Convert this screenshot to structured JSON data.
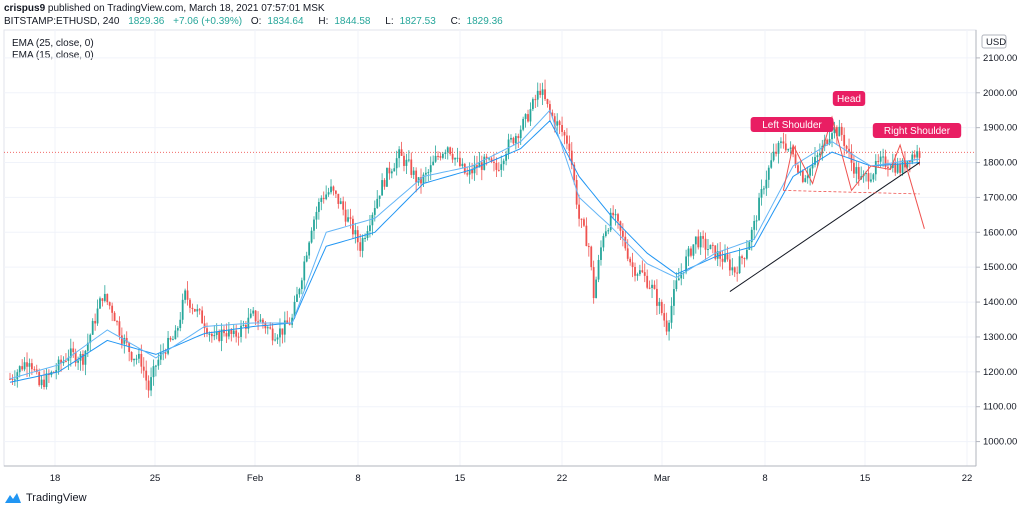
{
  "header": {
    "author": "crispus9",
    "published_text": "published on TradingView.com, March 18, 2021 07:57:01 MSK",
    "symbol": "BITSTAMP:ETHUSD, 240",
    "last": "1829.36",
    "change": "+7.06 (+0.39%)",
    "o_label": "O:",
    "o_value": "1834.64",
    "h_label": "H:",
    "h_value": "1844.58",
    "l_label": "L:",
    "l_value": "1827.53",
    "c_label": "C:",
    "c_value": "1829.36"
  },
  "legend": {
    "ema25": "EMA (25, close, 0)",
    "ema15": "EMA (15, close, 0)"
  },
  "currency": "USD",
  "pattern_labels": {
    "left_shoulder": "Left Shoulder",
    "head": "Head",
    "right_shoulder": "Right Shoulder"
  },
  "footer": {
    "brand": "TradingView"
  },
  "colors": {
    "up": "#26a69a",
    "down": "#ef5350",
    "ema": "#2196f3",
    "label_bg": "#e91e63",
    "trendline": "#131722",
    "pattern": "#ef5350",
    "last_price_line": "#ef5350"
  },
  "chart_data": {
    "type": "candlestick",
    "title": "BITSTAMP:ETHUSD, 240",
    "ylabel": "USD",
    "ylim": [
      930,
      2180
    ],
    "x_ticks": [
      "18",
      "25",
      "Feb",
      "8",
      "15",
      "22",
      "Mar",
      "8",
      "15",
      "22"
    ],
    "y_ticks": [
      1000,
      1100,
      1200,
      1300,
      1400,
      1500,
      1600,
      1700,
      1800,
      1900,
      2000,
      2100
    ],
    "last_price": 1829.36,
    "price_path": [
      [
        0,
        1180
      ],
      [
        8,
        1240
      ],
      [
        12,
        1160
      ],
      [
        18,
        1200
      ],
      [
        24,
        1250
      ],
      [
        30,
        1240
      ],
      [
        34,
        1330
      ],
      [
        38,
        1420
      ],
      [
        42,
        1380
      ],
      [
        46,
        1300
      ],
      [
        50,
        1250
      ],
      [
        54,
        1230
      ],
      [
        57,
        1150
      ],
      [
        60,
        1220
      ],
      [
        64,
        1270
      ],
      [
        68,
        1300
      ],
      [
        72,
        1420
      ],
      [
        76,
        1380
      ],
      [
        80,
        1340
      ],
      [
        84,
        1290
      ],
      [
        88,
        1320
      ],
      [
        92,
        1300
      ],
      [
        96,
        1330
      ],
      [
        100,
        1360
      ],
      [
        104,
        1340
      ],
      [
        108,
        1310
      ],
      [
        112,
        1320
      ],
      [
        116,
        1350
      ],
      [
        120,
        1480
      ],
      [
        124,
        1620
      ],
      [
        128,
        1700
      ],
      [
        132,
        1720
      ],
      [
        136,
        1680
      ],
      [
        140,
        1620
      ],
      [
        144,
        1560
      ],
      [
        148,
        1640
      ],
      [
        152,
        1720
      ],
      [
        156,
        1780
      ],
      [
        160,
        1820
      ],
      [
        164,
        1790
      ],
      [
        168,
        1740
      ],
      [
        172,
        1770
      ],
      [
        176,
        1820
      ],
      [
        180,
        1850
      ],
      [
        184,
        1800
      ],
      [
        188,
        1760
      ],
      [
        192,
        1790
      ],
      [
        196,
        1800
      ],
      [
        200,
        1780
      ],
      [
        204,
        1840
      ],
      [
        208,
        1880
      ],
      [
        212,
        1920
      ],
      [
        216,
        1980
      ],
      [
        218,
        2010
      ],
      [
        222,
        1940
      ],
      [
        226,
        1900
      ],
      [
        230,
        1850
      ],
      [
        234,
        1640
      ],
      [
        238,
        1560
      ],
      [
        240,
        1420
      ],
      [
        244,
        1600
      ],
      [
        248,
        1650
      ],
      [
        252,
        1580
      ],
      [
        256,
        1500
      ],
      [
        260,
        1480
      ],
      [
        264,
        1440
      ],
      [
        268,
        1370
      ],
      [
        270,
        1330
      ],
      [
        274,
        1450
      ],
      [
        278,
        1520
      ],
      [
        282,
        1580
      ],
      [
        286,
        1560
      ],
      [
        290,
        1540
      ],
      [
        294,
        1520
      ],
      [
        298,
        1490
      ],
      [
        302,
        1540
      ],
      [
        306,
        1620
      ],
      [
        310,
        1740
      ],
      [
        314,
        1820
      ],
      [
        318,
        1860
      ],
      [
        322,
        1820
      ],
      [
        326,
        1760
      ],
      [
        330,
        1790
      ],
      [
        334,
        1840
      ],
      [
        338,
        1900
      ],
      [
        342,
        1880
      ],
      [
        346,
        1800
      ],
      [
        350,
        1750
      ],
      [
        354,
        1770
      ],
      [
        358,
        1800
      ],
      [
        362,
        1800
      ],
      [
        366,
        1780
      ],
      [
        370,
        1820
      ],
      [
        374,
        1829
      ]
    ],
    "ema25_path": [
      [
        0,
        1170
      ],
      [
        20,
        1200
      ],
      [
        40,
        1290
      ],
      [
        60,
        1250
      ],
      [
        80,
        1310
      ],
      [
        100,
        1330
      ],
      [
        116,
        1340
      ],
      [
        130,
        1560
      ],
      [
        150,
        1600
      ],
      [
        170,
        1740
      ],
      [
        190,
        1780
      ],
      [
        210,
        1840
      ],
      [
        222,
        1920
      ],
      [
        234,
        1760
      ],
      [
        248,
        1640
      ],
      [
        262,
        1540
      ],
      [
        274,
        1480
      ],
      [
        290,
        1530
      ],
      [
        306,
        1560
      ],
      [
        322,
        1760
      ],
      [
        338,
        1830
      ],
      [
        354,
        1790
      ],
      [
        374,
        1800
      ]
    ],
    "ema15_path": [
      [
        0,
        1180
      ],
      [
        20,
        1220
      ],
      [
        40,
        1320
      ],
      [
        60,
        1240
      ],
      [
        80,
        1330
      ],
      [
        100,
        1340
      ],
      [
        116,
        1340
      ],
      [
        130,
        1600
      ],
      [
        150,
        1640
      ],
      [
        170,
        1760
      ],
      [
        190,
        1790
      ],
      [
        210,
        1860
      ],
      [
        222,
        1950
      ],
      [
        234,
        1700
      ],
      [
        248,
        1610
      ],
      [
        262,
        1510
      ],
      [
        274,
        1470
      ],
      [
        290,
        1540
      ],
      [
        306,
        1580
      ],
      [
        322,
        1790
      ],
      [
        338,
        1860
      ],
      [
        354,
        1790
      ],
      [
        374,
        1810
      ]
    ],
    "trendline": [
      [
        296,
        1430
      ],
      [
        374,
        1800
      ]
    ],
    "neckline": [
      [
        318,
        1720
      ],
      [
        374,
        1710
      ]
    ],
    "pattern_zigzag": [
      [
        318,
        1720
      ],
      [
        322,
        1850
      ],
      [
        330,
        1740
      ],
      [
        338,
        1930
      ],
      [
        346,
        1720
      ],
      [
        354,
        1790
      ],
      [
        362,
        1780
      ],
      [
        366,
        1850
      ],
      [
        376,
        1610
      ]
    ]
  }
}
